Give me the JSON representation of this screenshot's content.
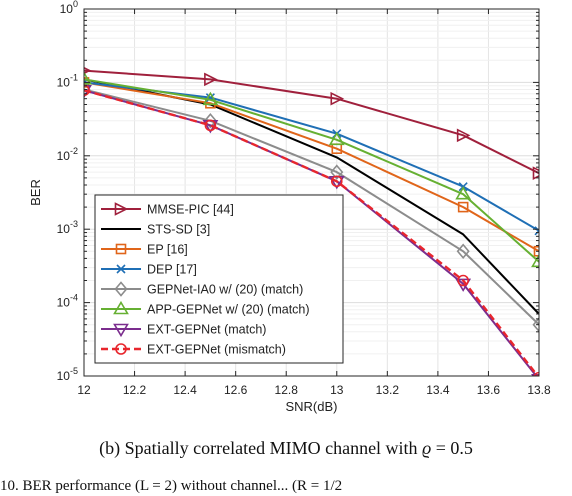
{
  "caption": {
    "label": "(b)",
    "text": "Spatially correlated MIMO channel with",
    "symbol": "ϱ",
    "equation": "= 0.5"
  },
  "footer_text": "10.  BER performance (L = 2) without channel... (R = 1/2",
  "chart_data": {
    "type": "line",
    "title": "",
    "xlabel": "SNR(dB)",
    "ylabel": "BER",
    "xlim": [
      12,
      13.8
    ],
    "ylim": [
      1e-05,
      1
    ],
    "yscale": "log",
    "grid": true,
    "legend_position": "bottom-left",
    "x_ticks": [
      "12",
      "12.2",
      "12.4",
      "12.6",
      "12.8",
      "13",
      "13.2",
      "13.4",
      "13.6",
      "13.8"
    ],
    "y_ticks": [
      {
        "base": "10",
        "exp": "0",
        "value": 1
      },
      {
        "base": "10",
        "exp": "-1",
        "value": 0.1
      },
      {
        "base": "10",
        "exp": "-2",
        "value": 0.01
      },
      {
        "base": "10",
        "exp": "-3",
        "value": 0.001
      },
      {
        "base": "10",
        "exp": "-4",
        "value": 0.0001
      },
      {
        "base": "10",
        "exp": "-5",
        "value": 1e-05
      }
    ],
    "x": [
      12,
      12.5,
      13,
      13.5,
      13.8
    ],
    "series": [
      {
        "name": "MMSE-PIC [44]",
        "color": "#a0203c",
        "marker": "triangle-right",
        "dash": "solid",
        "values": [
          0.145,
          0.11,
          0.06,
          0.019,
          0.0058
        ]
      },
      {
        "name": "STS-SD [3]",
        "color": "#000000",
        "marker": "none",
        "dash": "solid",
        "values": [
          0.11,
          0.05,
          0.0095,
          0.00085,
          7e-05
        ]
      },
      {
        "name": "EP [16]",
        "color": "#e0651a",
        "marker": "square",
        "dash": "solid",
        "values": [
          0.1,
          0.052,
          0.0125,
          0.002,
          0.0005
        ]
      },
      {
        "name": "DEP [17]",
        "color": "#1f6fb5",
        "marker": "x",
        "dash": "solid",
        "values": [
          0.1,
          0.062,
          0.02,
          0.0038,
          0.00095
        ]
      },
      {
        "name": "GEPNet-IA0 w/ (20) (match)",
        "color": "#8c8c8c",
        "marker": "diamond",
        "dash": "solid",
        "values": [
          0.08,
          0.03,
          0.006,
          0.0005,
          5e-05
        ]
      },
      {
        "name": "APP-GEPNet w/ (20) (match)",
        "color": "#66b032",
        "marker": "triangle-up",
        "dash": "solid",
        "values": [
          0.11,
          0.058,
          0.0165,
          0.003,
          0.00036
        ]
      },
      {
        "name": "EXT-GEPNet (match)",
        "color": "#7b2d8e",
        "marker": "triangle-down",
        "dash": "solid",
        "values": [
          0.078,
          0.026,
          0.0045,
          0.00018,
          9e-06
        ]
      },
      {
        "name": "EXT-GEPNet (mismatch)",
        "color": "#e8262d",
        "marker": "circle",
        "dash": "dashed",
        "values": [
          0.078,
          0.026,
          0.0045,
          0.0002,
          9.5e-06
        ]
      }
    ]
  }
}
